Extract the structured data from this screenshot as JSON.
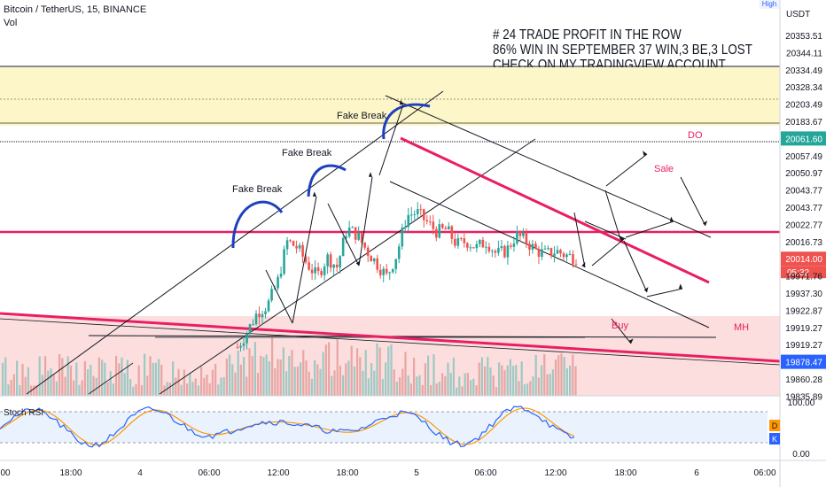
{
  "header": {
    "symbol_line": "Bitcoin / TetherUS, 15, BINANCE",
    "volume_label": "Vol",
    "high_button": "High"
  },
  "notes": {
    "line1": "# 24 TRADE PROFIT IN THE ROW",
    "line2": "86% WIN IN SEPTEMBER 37 WIN,3 BE,3 LOST",
    "line3": "CHECK ON MY TRADINGVIEW  ACCOUNT"
  },
  "chart_data": {
    "type": "candlestick",
    "title": "Bitcoin / TetherUS, 15, BINANCE",
    "y_axis": {
      "unit": "USDT",
      "range": [
        19830,
        20360
      ],
      "tick_labels": [
        "20353.51",
        "20344.11",
        "20334.49",
        "20328.34",
        "20203.49",
        "20183.67",
        "20061.60",
        "20057.49",
        "20050.97",
        "20043.77",
        "20043.77",
        "20022.77",
        "20016.73",
        "20014.00",
        "19971.76",
        "19937.30",
        "19922.87",
        "19919.27",
        "19919.27",
        "19878.47",
        "19860.28",
        "19835.89"
      ],
      "highlighted": {
        "20061.60": "#26a69a",
        "20014.00": "#ef5350",
        "19878.47": "#2962ff"
      },
      "countdown": "05:32"
    },
    "x_axis": {
      "tick_labels": [
        "00",
        "18:00",
        "4",
        "06:00",
        "12:00",
        "18:00",
        "5",
        "06:00",
        "12:00",
        "18:00",
        "6",
        "06:00"
      ]
    },
    "annotations": [
      "Fake Break",
      "Fake Break",
      "Fake Break",
      "DO",
      "Sale",
      "Buy",
      "MH"
    ],
    "price_path": [
      19875,
      19900,
      19930,
      19940,
      19975,
      20040,
      20030,
      20005,
      19985,
      20015,
      20000,
      20060,
      20050,
      20025,
      20005,
      19985,
      20020,
      20080,
      20085,
      20070,
      20055,
      20058,
      20035,
      20040,
      20030,
      20040,
      20020,
      20025,
      20050,
      20040,
      20025,
      20020,
      20025,
      20018,
      20014
    ],
    "indicator": {
      "name": "Stoch RSI",
      "tick_labels": [
        "100.00",
        "0.00"
      ],
      "legend": [
        "D",
        "K"
      ],
      "colors": {
        "K": "#2962ff",
        "D": "#ff9800"
      }
    },
    "colors": {
      "up": "#26a69a",
      "down": "#ef5350",
      "trendline": "#e91e63",
      "zone": "#fdf6c8"
    }
  }
}
